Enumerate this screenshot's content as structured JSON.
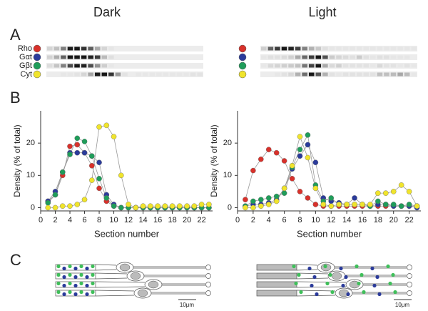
{
  "conditions": [
    "Dark",
    "Light"
  ],
  "panel_labels": [
    "A",
    "B",
    "C"
  ],
  "scale_bar": "10μm",
  "chart_data": [
    {
      "type": "line",
      "xlabel": "Section number",
      "ylabel": "Density (% of total)",
      "x": [
        1,
        2,
        3,
        4,
        5,
        6,
        7,
        8,
        9,
        10,
        11,
        12,
        13,
        14,
        15,
        16,
        17,
        18,
        19,
        20,
        21,
        22,
        23
      ],
      "xlim": [
        0,
        23.5
      ],
      "xticks": [
        0,
        2,
        4,
        6,
        8,
        10,
        12,
        14,
        16,
        18,
        20,
        22
      ],
      "ylim": [
        -1,
        30
      ],
      "yticks": [
        0,
        10,
        20
      ],
      "series": [
        {
          "name": "Rho",
          "color": "#d8312b",
          "values": [
            2,
            4,
            10,
            19,
            19.5,
            17,
            13,
            6,
            2,
            0.5,
            0,
            0,
            0,
            0,
            0,
            0,
            0,
            0,
            0,
            0,
            0,
            0,
            0
          ]
        },
        {
          "name": "Gαt",
          "color": "#2b3b9b",
          "values": [
            2,
            5,
            11,
            17,
            17,
            17,
            16,
            14,
            4,
            1,
            0,
            0,
            0,
            0,
            0,
            0,
            0,
            0,
            0,
            0,
            0,
            0,
            0
          ]
        },
        {
          "name": "Gβt",
          "color": "#1f9d5a",
          "values": [
            1.5,
            4,
            11,
            16.5,
            21.5,
            20.5,
            16,
            9,
            3,
            0.5,
            0,
            0,
            0,
            0,
            0,
            0,
            0,
            0,
            0,
            0,
            0,
            0,
            0
          ]
        },
        {
          "name": "Cyt",
          "color": "#f0e42c",
          "values": [
            0,
            0,
            0.5,
            0.5,
            1,
            2.5,
            8.5,
            25,
            25.5,
            22,
            10,
            1,
            0,
            0.5,
            0.5,
            0.5,
            0.5,
            0.5,
            0.5,
            0.5,
            0.5,
            1,
            1
          ]
        }
      ]
    },
    {
      "type": "line",
      "xlabel": "Section number",
      "ylabel": "Density (% of total)",
      "x": [
        1,
        2,
        3,
        4,
        5,
        6,
        7,
        8,
        9,
        10,
        11,
        12,
        13,
        14,
        15,
        16,
        17,
        18,
        19,
        20,
        21,
        22,
        23
      ],
      "xlim": [
        0,
        23.5
      ],
      "xticks": [
        0,
        2,
        4,
        6,
        8,
        10,
        12,
        14,
        16,
        18,
        20,
        22
      ],
      "ylim": [
        -1,
        30
      ],
      "yticks": [
        0,
        10,
        20
      ],
      "series": [
        {
          "name": "Rho",
          "color": "#d8312b",
          "values": [
            2.5,
            11.5,
            15,
            18,
            17,
            14.5,
            9,
            5,
            3,
            1,
            0.5,
            0.5,
            0.5,
            0.5,
            0.5,
            0.5,
            0.5,
            0.5,
            0.5,
            0.5,
            0.5,
            0.5,
            0.5
          ]
        },
        {
          "name": "Gαt",
          "color": "#2b3b9b",
          "values": [
            0.5,
            1,
            1,
            1.5,
            2.5,
            6,
            12,
            16,
            19.5,
            14,
            3,
            2,
            1.5,
            1,
            3,
            1,
            0.5,
            1,
            1,
            0.5,
            0.5,
            0.5,
            0
          ]
        },
        {
          "name": "Gβt",
          "color": "#1f9d5a",
          "values": [
            0.5,
            2,
            2.5,
            3,
            3.5,
            4.5,
            12.5,
            18,
            22.5,
            7,
            2,
            3,
            1,
            1,
            1,
            1,
            0.5,
            2,
            1,
            1,
            0.5,
            1,
            0.5
          ]
        },
        {
          "name": "Cyt",
          "color": "#f0e42c",
          "values": [
            0,
            0,
            0.5,
            1,
            2,
            6,
            13,
            22,
            15.5,
            6,
            1,
            0.5,
            1,
            1,
            1,
            1,
            1,
            4.5,
            4.5,
            5,
            7,
            5,
            0.5
          ]
        }
      ]
    }
  ]
}
